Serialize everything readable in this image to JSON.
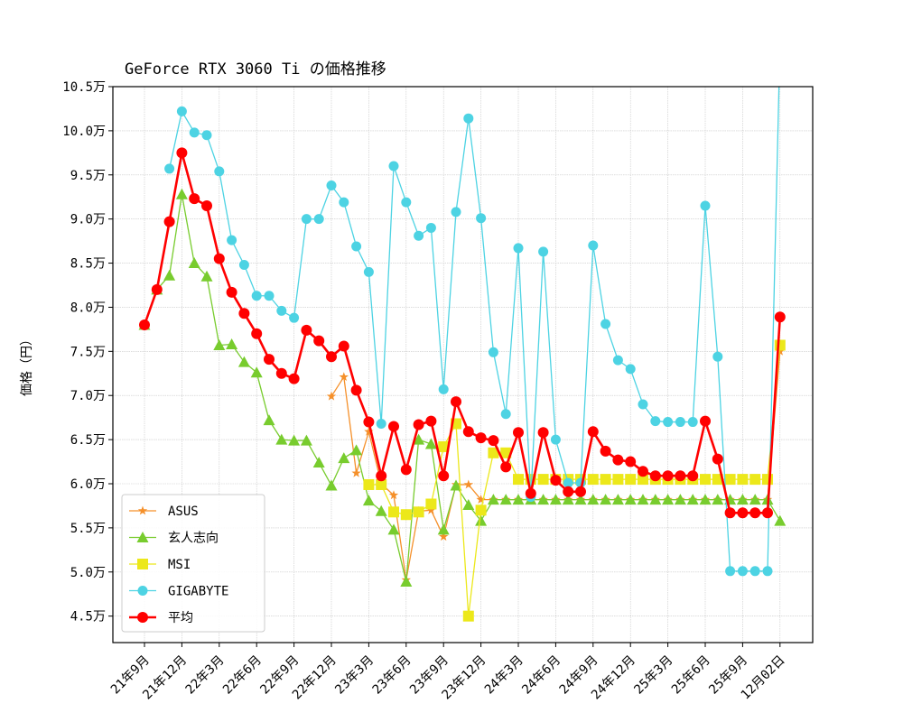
{
  "chart_data": {
    "type": "line",
    "title": "GeForce RTX 3060 Ti の価格推移",
    "xlabel": "",
    "ylabel": "価格（円）",
    "ylim": [
      4.2,
      10.5
    ],
    "y_unit": "万円",
    "yticks": [
      4.5,
      5.0,
      5.5,
      6.0,
      6.5,
      7.0,
      7.5,
      8.0,
      8.5,
      9.0,
      9.5,
      10.0,
      10.5
    ],
    "ytick_labels": [
      "4.5万",
      "5.0万",
      "5.5万",
      "6.0万",
      "6.5万",
      "7.0万",
      "7.5万",
      "8.0万",
      "8.5万",
      "9.0万",
      "9.5万",
      "10.0万",
      "10.5万"
    ],
    "xtick_index": [
      0,
      3,
      6,
      9,
      12,
      15,
      18,
      21,
      24,
      27,
      30,
      33,
      36,
      39,
      42,
      45,
      48,
      51
    ],
    "xtick_labels": [
      "21年9月",
      "21年12月",
      "22年3月",
      "22年6月",
      "22年9月",
      "22年12月",
      "23年3月",
      "23年6月",
      "23年9月",
      "23年12月",
      "24年3月",
      "24年6月",
      "24年9月",
      "24年12月",
      "25年3月",
      "25年6月",
      "25年9月",
      "12月02日"
    ],
    "x": [
      "21年9月",
      "21年10月",
      "21年11月",
      "21年12月",
      "22年1月",
      "22年2月",
      "22年3月",
      "22年4月",
      "22年5月",
      "22年6月",
      "22年7月",
      "22年8月",
      "22年9月",
      "22年10月",
      "22年11月",
      "22年12月",
      "23年1月",
      "23年2月",
      "23年3月",
      "23年4月",
      "23年5月",
      "23年6月",
      "23年7月",
      "23年8月",
      "23年9月",
      "23年10月",
      "23年11月",
      "23年12月",
      "24年1月",
      "24年2月",
      "24年3月",
      "24年4月",
      "24年5月",
      "24年6月",
      "24年7月",
      "24年8月",
      "24年9月",
      "24年10月",
      "24年11月",
      "24年12月",
      "25年1月",
      "25年2月",
      "25年3月",
      "25年4月",
      "25年5月",
      "25年6月",
      "25年7月",
      "25年8月",
      "25年9月",
      "25年10月",
      "25年11月",
      "12月02日"
    ],
    "grid": true,
    "legend_position": "lower-left",
    "series": [
      {
        "name": "ASUS",
        "color": "#f5902a",
        "marker": "star",
        "values": [
          7.8,
          8.2,
          null,
          null,
          null,
          null,
          null,
          null,
          null,
          null,
          null,
          null,
          null,
          null,
          null,
          6.99,
          7.21,
          6.12,
          6.59,
          6.0,
          5.87,
          4.91,
          5.69,
          5.7,
          5.4,
          5.99,
          5.99,
          5.82,
          5.82,
          5.82,
          5.82,
          5.82,
          5.82,
          5.82,
          5.82,
          5.82,
          5.82,
          5.82,
          5.82,
          5.82,
          5.82,
          5.82,
          5.82,
          5.82,
          5.82,
          5.82,
          5.82,
          5.82,
          5.82,
          5.82,
          5.82,
          7.5
        ]
      },
      {
        "name": "玄人志向",
        "color": "#78cc2e",
        "marker": "triangle",
        "values": [
          7.8,
          8.2,
          8.36,
          9.28,
          8.5,
          8.35,
          7.57,
          7.58,
          7.38,
          7.26,
          6.72,
          6.5,
          6.49,
          6.49,
          6.24,
          5.98,
          6.29,
          6.38,
          5.81,
          5.69,
          5.48,
          4.89,
          6.5,
          6.45,
          5.48,
          5.98,
          5.76,
          5.58,
          5.82,
          5.82,
          5.82,
          5.82,
          5.82,
          5.82,
          5.82,
          5.82,
          5.82,
          5.82,
          5.82,
          5.82,
          5.82,
          5.82,
          5.82,
          5.82,
          5.82,
          5.82,
          5.82,
          5.82,
          5.82,
          5.82,
          5.82,
          5.58
        ]
      },
      {
        "name": "MSI",
        "color": "#ece81a",
        "marker": "square",
        "values": [
          null,
          null,
          null,
          null,
          null,
          null,
          null,
          null,
          null,
          null,
          null,
          null,
          null,
          null,
          null,
          null,
          null,
          null,
          5.99,
          5.99,
          5.68,
          5.65,
          5.68,
          5.77,
          6.42,
          6.68,
          4.5,
          5.7,
          6.35,
          6.35,
          6.05,
          6.05,
          6.05,
          6.05,
          6.05,
          6.05,
          6.05,
          6.05,
          6.05,
          6.05,
          6.05,
          6.05,
          6.05,
          6.05,
          6.05,
          6.05,
          6.05,
          6.05,
          6.05,
          6.05,
          6.05,
          7.57
        ]
      },
      {
        "name": "GIGABYTE",
        "color": "#4dd3e3",
        "marker": "circle",
        "values": [
          null,
          null,
          9.57,
          10.22,
          9.98,
          9.95,
          9.54,
          8.76,
          8.48,
          8.13,
          8.13,
          7.96,
          7.88,
          9.0,
          9.0,
          9.38,
          9.19,
          8.69,
          8.4,
          6.68,
          9.6,
          9.19,
          8.81,
          8.9,
          7.07,
          9.08,
          10.14,
          9.01,
          7.49,
          6.79,
          8.67,
          5.85,
          8.63,
          6.5,
          6.01,
          6.01,
          8.7,
          7.81,
          7.4,
          7.3,
          6.9,
          6.71,
          6.7,
          6.7,
          6.7,
          9.15,
          7.44,
          5.01,
          5.01,
          5.01,
          5.01,
          11.0
        ]
      },
      {
        "name": "平均",
        "color": "#ff0000",
        "marker": "circle",
        "values": [
          7.8,
          8.2,
          8.97,
          9.75,
          9.23,
          9.15,
          8.55,
          8.17,
          7.93,
          7.7,
          7.41,
          7.25,
          7.19,
          7.74,
          7.62,
          7.44,
          7.56,
          7.06,
          6.7,
          6.09,
          6.65,
          6.16,
          6.67,
          6.71,
          6.09,
          6.93,
          6.59,
          6.52,
          6.49,
          6.19,
          6.58,
          5.89,
          6.58,
          6.04,
          5.91,
          5.91,
          6.59,
          6.37,
          6.27,
          6.25,
          6.14,
          6.09,
          6.09,
          6.09,
          6.09,
          6.71,
          6.28,
          5.67,
          5.67,
          5.67,
          5.67,
          7.89
        ]
      }
    ]
  }
}
